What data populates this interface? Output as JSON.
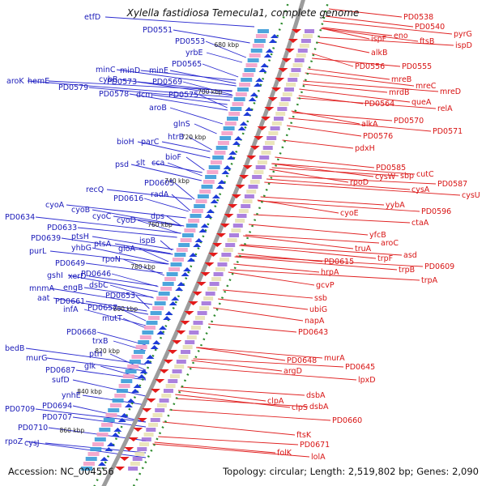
{
  "title": "Xylella fastidiosa Temecula1, complete genome",
  "footer": {
    "accession": "Accession: NC_004556",
    "summary": "Topology: circular; Length: 2,519,802 bp; Genes: 2,090"
  },
  "colors": {
    "left_labels": "#1a1ab8",
    "right_labels": "#d81414",
    "backbone": "#909090",
    "dots": "#1f8f1f"
  },
  "kbp_marks": [
    "680 kbp",
    "700 kbp",
    "720 kbp",
    "740 kbp",
    "760 kbp",
    "780 kbp",
    "800 kbp",
    "820 kbp",
    "840 kbp",
    "860 kbp"
  ],
  "left_genes": [
    "etfD",
    "PD0551",
    "PD0553",
    "yrbE",
    "PD0565",
    "minC",
    "minD",
    "minE",
    "cybB",
    "PD0573",
    "PD0569",
    "aroK",
    "hemE",
    "PD0579",
    "PD0578",
    "dcm",
    "PD0575",
    "aroB",
    "glnS",
    "htrB",
    "bioH",
    "parC",
    "bioF",
    "psd",
    "slt",
    "cca",
    "PD0605",
    "recQ",
    "PD0616",
    "radA",
    "dps",
    "cyoA",
    "cyoB",
    "cyoC",
    "cyoD",
    "PD0634",
    "PD0633",
    "ptsH",
    "PD0639",
    "ptsA",
    "gloA",
    "yhbG",
    "ispB",
    "purL",
    "rpoN",
    "PD0649",
    "PD0646",
    "gshI",
    "xerD",
    "dsbC",
    "mnmA",
    "engB",
    "PD0653",
    "aat",
    "PD0661",
    "PD0657",
    "infA",
    "mutT",
    "PD0668",
    "bedB",
    "trxB",
    "murG",
    "ptrI",
    "PD0687",
    "glk",
    "sufD",
    "ynhE",
    "PD0709",
    "PD0694",
    "PD0707",
    "PD0710",
    "rpoZ",
    "cysJ"
  ],
  "right_genes": [
    "PD0538",
    "PD0540",
    "pyrG",
    "eno",
    "ispF",
    "ftsB",
    "ispD",
    "alkB",
    "PD0556",
    "PD0555",
    "mreB",
    "mreC",
    "mrdB",
    "mreD",
    "queA",
    "PD0564",
    "relA",
    "alkA",
    "PD0570",
    "PD0576",
    "PD0571",
    "pdxH",
    "PD0585",
    "cysW",
    "sbp",
    "cutC",
    "rpoD",
    "PD0587",
    "cysA",
    "cysU",
    "yybA",
    "PD0596",
    "cyoE",
    "ctaA",
    "yfcB",
    "truA",
    "aroC",
    "asd",
    "trpF",
    "PD0615",
    "PD0609",
    "trpB",
    "hrpA",
    "trpA",
    "gcvP",
    "ssb",
    "ubiG",
    "napA",
    "PD0643",
    "murA",
    "PD0648",
    "PD0645",
    "argD",
    "lpxD",
    "dsbA",
    "clpA",
    "clpS",
    "dsbA",
    "PD0660",
    "ftsK",
    "PD0671",
    "folK",
    "lolA"
  ]
}
